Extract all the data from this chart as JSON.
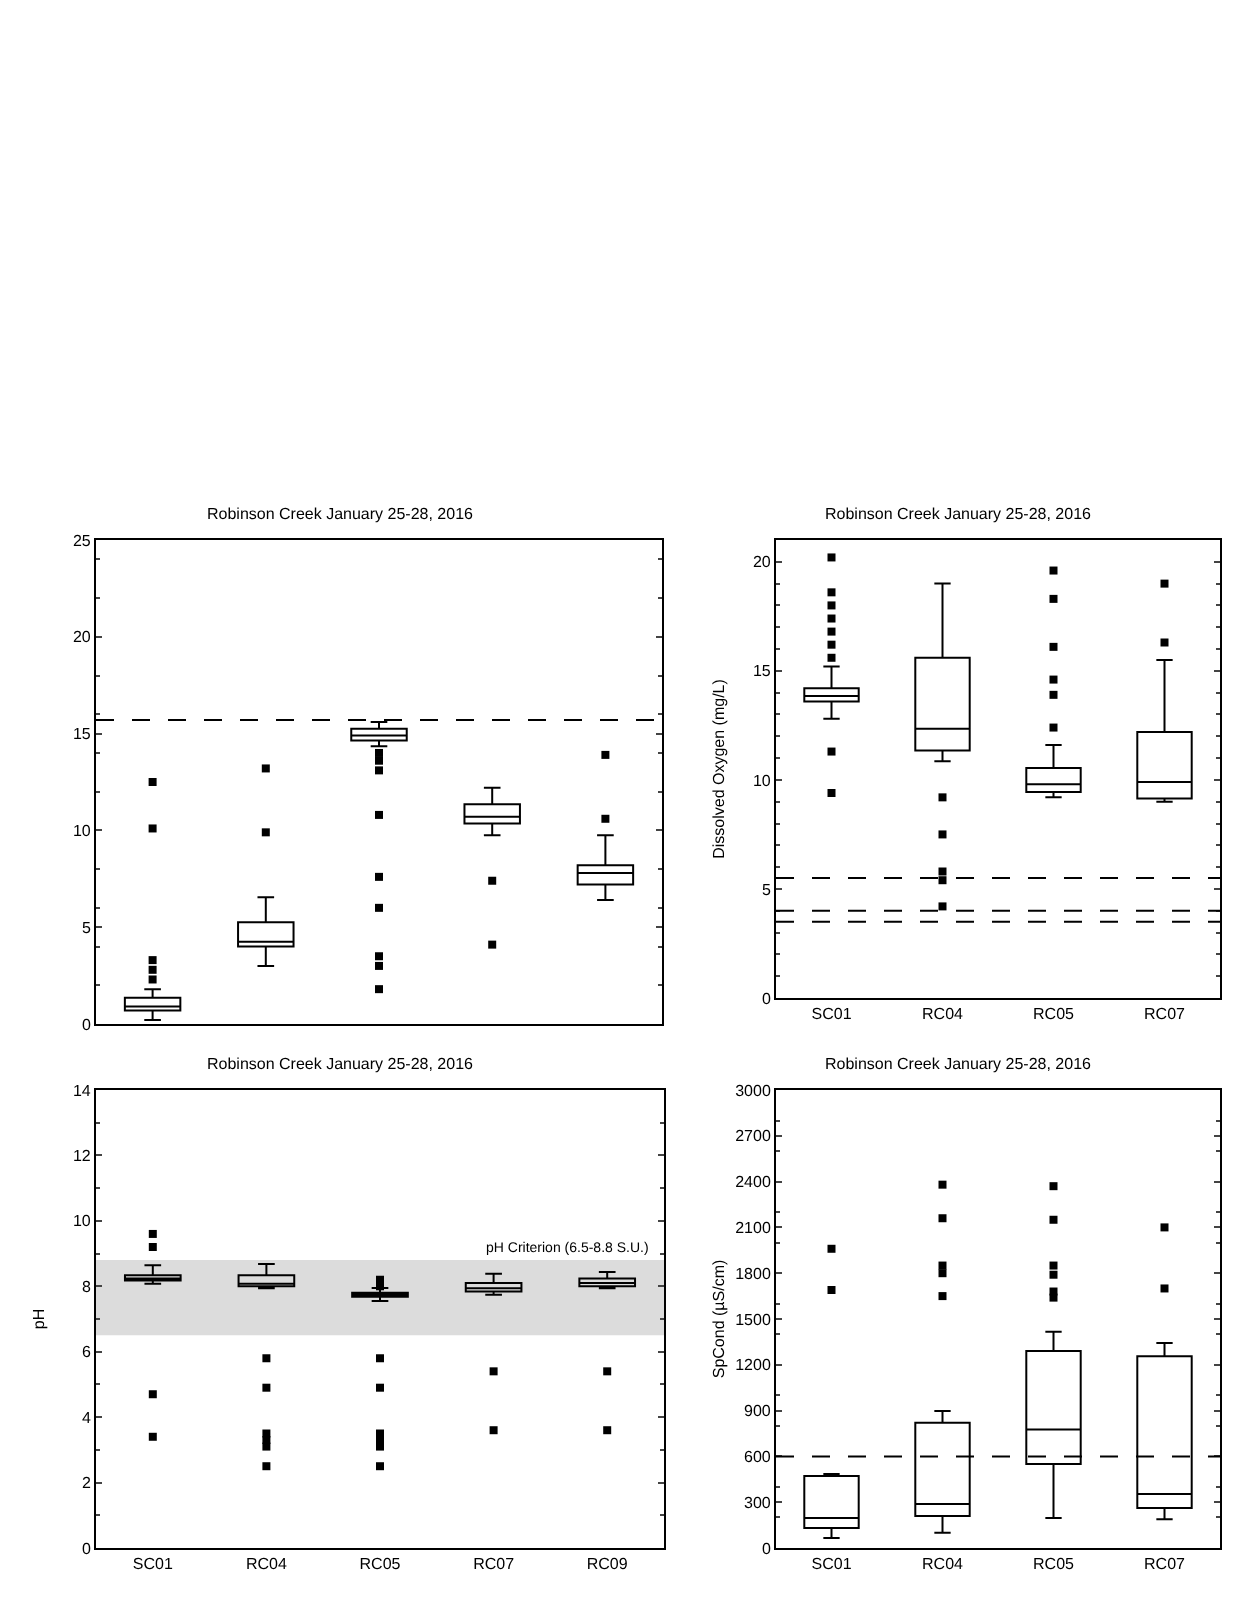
{
  "chart_data": [
    {
      "type": "box",
      "title": "Robinson Creek January 25-28, 2016",
      "categories": [
        "SC01",
        "RC04",
        "RC05",
        "RC07",
        "RC09"
      ],
      "tick_labels": "y",
      "ylim": [
        0,
        25
      ],
      "yticks": [
        0,
        5,
        10,
        15,
        20,
        25
      ],
      "marker": "square",
      "boxes": [
        {
          "low": 0.2,
          "q1": 0.7,
          "median": 0.9,
          "q3": 1.35,
          "high": 1.8
        },
        {
          "low": 3.0,
          "q1": 4.0,
          "median": 4.25,
          "q3": 5.25,
          "high": 6.55
        },
        {
          "low": 14.35,
          "q1": 14.65,
          "median": 14.9,
          "q3": 15.25,
          "high": 15.6
        },
        {
          "low": 9.75,
          "q1": 10.35,
          "median": 10.7,
          "q3": 11.35,
          "high": 12.2
        },
        {
          "low": 6.4,
          "q1": 7.2,
          "median": 7.8,
          "q3": 8.2,
          "high": 9.75
        }
      ],
      "series": [
        {
          "type": "scatter",
          "color": "#000000",
          "x": [
            "SC01",
            "SC01",
            "SC01",
            "SC01",
            "SC01",
            "RC04",
            "RC04",
            "RC05",
            "RC05",
            "RC05",
            "RC05",
            "RC05",
            "RC05",
            "RC05",
            "RC05",
            "RC05",
            "RC07",
            "RC07",
            "RC09",
            "RC09"
          ],
          "values": [
            3.3,
            2.8,
            2.3,
            10.1,
            12.5,
            9.9,
            13.2,
            14.0,
            13.6,
            13.1,
            10.8,
            7.6,
            6.0,
            3.5,
            3.0,
            1.8,
            7.4,
            4.1,
            10.6,
            13.9
          ]
        }
      ],
      "ref_lines": [
        {
          "axis": "y",
          "value": 15.7,
          "line_style": "dashed",
          "color": "#000000"
        }
      ]
    },
    {
      "type": "box",
      "title": "Robinson Creek January 25-28, 2016",
      "ylabel": "Dissolved Oxygen (mg/L)",
      "categories": [
        "SC01",
        "RC04",
        "RC05",
        "RC07"
      ],
      "ylim": [
        0,
        21
      ],
      "yticks": [
        0,
        5,
        10,
        15,
        20
      ],
      "marker": "square",
      "boxes": [
        {
          "low": 12.8,
          "q1": 13.6,
          "median": 13.85,
          "q3": 14.2,
          "high": 15.2
        },
        {
          "low": 10.85,
          "q1": 11.35,
          "median": 12.35,
          "q3": 15.6,
          "high": 19.0
        },
        {
          "low": 9.2,
          "q1": 9.45,
          "median": 9.8,
          "q3": 10.55,
          "high": 11.6
        },
        {
          "low": 9.0,
          "q1": 9.15,
          "median": 9.9,
          "q3": 12.2,
          "high": 15.5
        }
      ],
      "series": [
        {
          "type": "scatter",
          "color": "#000000",
          "x": [
            "SC01",
            "SC01",
            "SC01",
            "SC01",
            "SC01",
            "SC01",
            "SC01",
            "SC01",
            "SC01",
            "RC04",
            "RC04",
            "RC04",
            "RC04",
            "RC04",
            "RC05",
            "RC05",
            "RC05",
            "RC05",
            "RC05",
            "RC05",
            "RC07",
            "RC07"
          ],
          "values": [
            20.2,
            18.6,
            18.0,
            17.4,
            16.8,
            16.2,
            15.6,
            11.3,
            9.4,
            9.2,
            7.5,
            5.8,
            5.4,
            4.2,
            19.6,
            18.3,
            16.1,
            14.6,
            13.9,
            12.4,
            19.0,
            16.3
          ]
        }
      ],
      "ref_lines": [
        {
          "axis": "y",
          "value": 5.5,
          "line_style": "dashed",
          "color": "#000000"
        },
        {
          "axis": "y",
          "value": 4.0,
          "line_style": "dashed",
          "color": "#000000"
        },
        {
          "axis": "y",
          "value": 3.5,
          "line_style": "dashed",
          "color": "#000000"
        }
      ]
    },
    {
      "type": "box",
      "title": "Robinson Creek January 25-28, 2016",
      "ylabel": "pH",
      "categories": [
        "SC01",
        "RC04",
        "RC05",
        "RC07",
        "RC09"
      ],
      "ylim": [
        0,
        14
      ],
      "yticks": [
        0,
        2,
        4,
        6,
        8,
        10,
        12,
        14
      ],
      "marker": "square",
      "boxes": [
        {
          "low": 8.08,
          "q1": 8.18,
          "median": 8.24,
          "q3": 8.34,
          "high": 8.64
        },
        {
          "low": 7.94,
          "q1": 8.0,
          "median": 8.08,
          "q3": 8.34,
          "high": 8.68
        },
        {
          "low": 7.55,
          "q1": 7.68,
          "median": 7.74,
          "q3": 7.8,
          "high": 7.95
        },
        {
          "low": 7.74,
          "q1": 7.84,
          "median": 7.94,
          "q3": 8.1,
          "high": 8.38
        },
        {
          "low": 7.94,
          "q1": 8.0,
          "median": 8.1,
          "q3": 8.24,
          "high": 8.44
        }
      ],
      "series": [
        {
          "type": "scatter",
          "color": "#000000",
          "x": [
            "SC01",
            "SC01",
            "SC01",
            "SC01",
            "RC04",
            "RC04",
            "RC04",
            "RC04",
            "RC04",
            "RC04",
            "RC05",
            "RC05",
            "RC05",
            "RC05",
            "RC05",
            "RC05",
            "RC05",
            "RC05",
            "RC07",
            "RC07",
            "RC09",
            "RC09"
          ],
          "values": [
            9.6,
            9.2,
            4.7,
            3.4,
            5.8,
            4.9,
            3.5,
            3.3,
            3.1,
            2.5,
            8.2,
            8.0,
            5.8,
            4.9,
            3.5,
            3.3,
            3.1,
            2.5,
            5.4,
            3.6,
            5.4,
            3.6
          ]
        }
      ],
      "bands": [
        {
          "axis": "y",
          "from": 6.5,
          "to": 8.8,
          "label": "pH Criterion (6.5-8.8 S.U.)",
          "color": "#dcdcdc"
        }
      ]
    },
    {
      "type": "box",
      "title": "Robinson Creek January 25-28, 2016",
      "ylabel": "SpCond (µS/cm)",
      "categories": [
        "SC01",
        "RC04",
        "RC05",
        "RC07"
      ],
      "ylim": [
        0,
        3000
      ],
      "yticks": [
        0,
        300,
        600,
        900,
        1200,
        1500,
        1800,
        2100,
        2400,
        2700,
        3000
      ],
      "marker": "square",
      "boxes": [
        {
          "low": 65,
          "q1": 131,
          "median": 196,
          "q3": 471,
          "high": 484
        },
        {
          "low": 100,
          "q1": 209,
          "median": 288,
          "q3": 820,
          "high": 898
        },
        {
          "low": 196,
          "q1": 550,
          "median": 776,
          "q3": 1291,
          "high": 1417
        },
        {
          "low": 188,
          "q1": 262,
          "median": 353,
          "q3": 1256,
          "high": 1343
        }
      ],
      "series": [
        {
          "type": "scatter",
          "color": "#000000",
          "x": [
            "SC01",
            "SC01",
            "RC04",
            "RC04",
            "RC04",
            "RC04",
            "RC04",
            "RC05",
            "RC05",
            "RC05",
            "RC05",
            "RC05",
            "RC05",
            "RC07",
            "RC07"
          ],
          "values": [
            1960,
            1690,
            2380,
            2160,
            1850,
            1800,
            1650,
            2370,
            2150,
            1850,
            1790,
            1680,
            1640,
            2100,
            1700
          ]
        }
      ],
      "ref_lines": [
        {
          "axis": "y",
          "value": 600,
          "line_style": "dashed",
          "color": "#000000"
        }
      ]
    }
  ]
}
